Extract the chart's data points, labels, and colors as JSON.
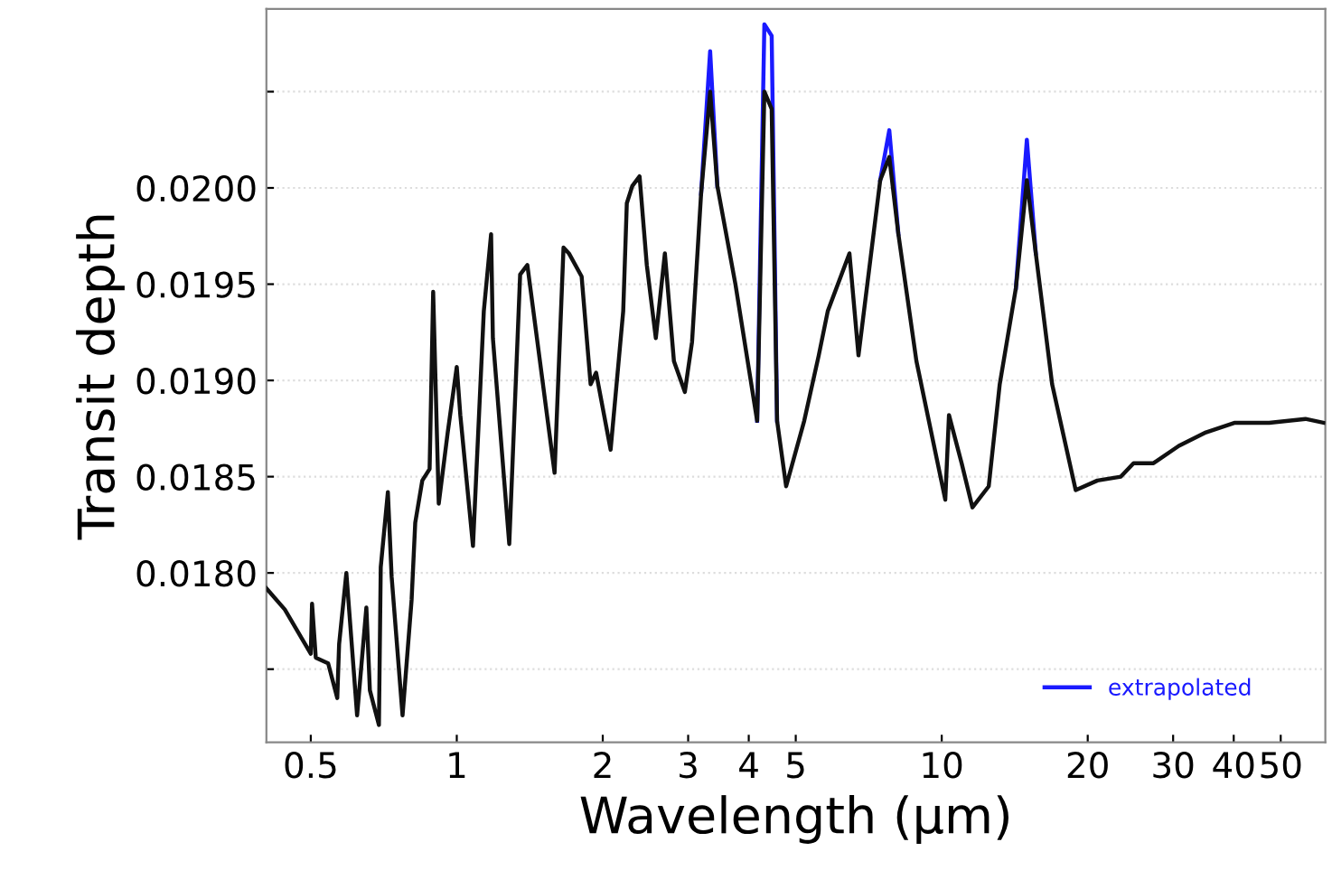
{
  "chart_data": {
    "type": "line",
    "xlabel": "Wavelength (µm)",
    "ylabel": "Transit depth",
    "log": "x",
    "grid": "y",
    "legend": "bottom right",
    "marker": "none",
    "line_style": "solid",
    "xlim": [
      0.405,
      61.8
    ],
    "ylim": [
      0.01712,
      0.02093
    ],
    "xticks": [
      0.5,
      1,
      2,
      3,
      4,
      5,
      10,
      20,
      30,
      40,
      50
    ],
    "yticks": [
      {
        "value": 0.0175,
        "label": null
      },
      {
        "value": 0.018,
        "label": "0.0180"
      },
      {
        "value": 0.0185,
        "label": "0.0185"
      },
      {
        "value": 0.019,
        "label": "0.0190"
      },
      {
        "value": 0.0195,
        "label": "0.0195"
      },
      {
        "value": 0.02,
        "label": "0.0200"
      },
      {
        "value": 0.0205,
        "label": null
      }
    ],
    "series": [
      {
        "name": "extrapolated",
        "color": "#1a1aff",
        "x": [
          3.19,
          3.33,
          3.446,
          3.6,
          4.163,
          4.308,
          4.46,
          4.576,
          6.0,
          7.467,
          7.796,
          8.139,
          11.0,
          14.22,
          14.98,
          15.63
        ],
        "values": [
          0.01997,
          0.02071,
          0.02001,
          null,
          0.01879,
          0.02085,
          0.02079,
          0.01879,
          null,
          0.02004,
          0.0203,
          0.01976,
          null,
          0.01948,
          0.02025,
          0.01966
        ]
      },
      {
        "color": "#111111",
        "x": [
          0.405,
          0.442,
          0.5,
          0.503,
          0.512,
          0.543,
          0.567,
          0.572,
          0.592,
          0.623,
          0.651,
          0.662,
          0.691,
          0.697,
          0.721,
          0.734,
          0.773,
          0.807,
          0.821,
          0.849,
          0.879,
          0.894,
          0.918,
          0.958,
          1.0,
          1.017,
          1.08,
          1.137,
          1.177,
          1.187,
          1.283,
          1.351,
          1.398,
          1.591,
          1.66,
          1.703,
          1.809,
          1.888,
          1.938,
          2.076,
          2.204,
          2.242,
          2.301,
          2.382,
          2.465,
          2.573,
          2.686,
          2.804,
          2.953,
          3.056,
          3.19,
          3.33,
          3.446,
          3.755,
          4.163,
          4.308,
          4.46,
          4.576,
          4.777,
          5.205,
          5.577,
          5.821,
          6.452,
          6.735,
          7.467,
          7.796,
          8.139,
          8.868,
          10.17,
          10.35,
          10.99,
          11.57,
          12.5,
          13.17,
          14.22,
          14.98,
          15.63,
          16.89,
          18.89,
          20.94,
          23.41,
          24.86,
          27.33,
          30.83,
          35.06,
          40.23,
          47.35,
          56.23,
          61.3
        ],
        "values": [
          0.01792,
          0.01781,
          0.01758,
          0.01784,
          0.01756,
          0.01753,
          0.01735,
          0.01763,
          0.018,
          0.01726,
          0.01782,
          0.01739,
          0.01721,
          0.01803,
          0.01842,
          0.01798,
          0.01726,
          0.01786,
          0.01826,
          0.01848,
          0.01854,
          0.01946,
          0.01836,
          0.01873,
          0.01907,
          0.01882,
          0.01814,
          0.01936,
          0.01976,
          0.01922,
          0.01815,
          0.01955,
          0.0196,
          0.01852,
          0.01969,
          0.01966,
          0.01954,
          0.01898,
          0.01904,
          0.01864,
          0.01936,
          0.01992,
          0.02001,
          0.02006,
          0.0196,
          0.01922,
          0.01966,
          0.0191,
          0.01894,
          0.0192,
          0.01997,
          0.0205,
          0.02001,
          0.0195,
          0.01879,
          0.0205,
          0.02041,
          0.01879,
          0.01845,
          0.01879,
          0.01913,
          0.01936,
          0.01966,
          0.01913,
          0.02004,
          0.02016,
          0.01976,
          0.0191,
          0.01838,
          0.01882,
          0.01857,
          0.01834,
          0.01845,
          0.01898,
          0.01948,
          0.02004,
          0.01966,
          0.01898,
          0.01843,
          0.01848,
          0.0185,
          0.01857,
          0.01857,
          0.01866,
          0.01873,
          0.01878,
          0.01878,
          0.0188,
          0.01878
        ]
      }
    ]
  }
}
